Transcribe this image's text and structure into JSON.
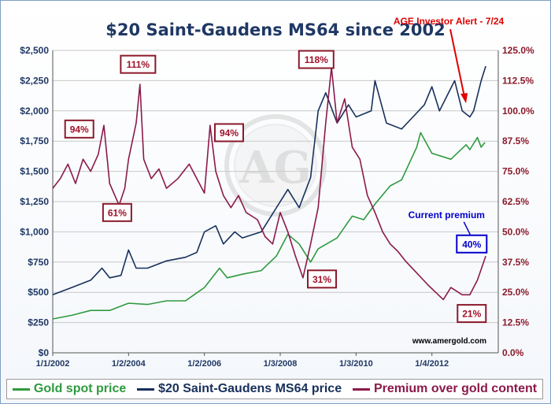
{
  "chart_data": {
    "type": "line",
    "title": "$20 Saint-Gaudens MS64 since 2002",
    "x_ticks": [
      "1/1/2002",
      "1/2/2004",
      "1/2/2006",
      "1/3/2008",
      "1/3/2010",
      "1/4/2012"
    ],
    "y_left_ticks": [
      "$0",
      "$250",
      "$500",
      "$750",
      "$1,000",
      "$1,250",
      "$1,500",
      "$1,750",
      "$2,000",
      "$2,250",
      "$2,500"
    ],
    "y_right_ticks": [
      "0.0%",
      "12.5%",
      "25.0%",
      "37.5%",
      "50.0%",
      "62.5%",
      "75.0%",
      "87.5%",
      "100.0%",
      "112.5%",
      "125.0%"
    ],
    "ylim_left": [
      0,
      2500
    ],
    "ylim_right": [
      0,
      125
    ],
    "xlim": [
      2002.0,
      2013.75
    ],
    "grid": "horizontal",
    "legend_position": "bottom",
    "colors": {
      "gold": "#2e9a3f",
      "coin": "#17305c",
      "premium": "#8b1a4a",
      "title": "#1f3864",
      "callout": "#8b1a2b",
      "current": "#0000cc",
      "alert": "#e00000"
    },
    "series": [
      {
        "name": "Gold spot price",
        "axis": "left",
        "points": [
          [
            2002.0,
            280
          ],
          [
            2002.5,
            310
          ],
          [
            2003.0,
            350
          ],
          [
            2003.5,
            350
          ],
          [
            2004.0,
            410
          ],
          [
            2004.5,
            400
          ],
          [
            2005.0,
            430
          ],
          [
            2005.5,
            430
          ],
          [
            2006.0,
            540
          ],
          [
            2006.4,
            700
          ],
          [
            2006.6,
            620
          ],
          [
            2007.0,
            650
          ],
          [
            2007.5,
            680
          ],
          [
            2007.9,
            800
          ],
          [
            2008.2,
            980
          ],
          [
            2008.5,
            900
          ],
          [
            2008.8,
            750
          ],
          [
            2009.0,
            860
          ],
          [
            2009.5,
            950
          ],
          [
            2009.9,
            1130
          ],
          [
            2010.2,
            1100
          ],
          [
            2010.5,
            1230
          ],
          [
            2010.9,
            1380
          ],
          [
            2011.2,
            1430
          ],
          [
            2011.6,
            1700
          ],
          [
            2011.7,
            1820
          ],
          [
            2012.0,
            1650
          ],
          [
            2012.5,
            1600
          ],
          [
            2012.9,
            1720
          ],
          [
            2013.0,
            1680
          ],
          [
            2013.2,
            1780
          ],
          [
            2013.3,
            1700
          ],
          [
            2013.4,
            1740
          ]
        ]
      },
      {
        "name": "$20 Saint-Gaudens MS64 price",
        "axis": "left",
        "points": [
          [
            2002.0,
            480
          ],
          [
            2002.5,
            540
          ],
          [
            2003.0,
            600
          ],
          [
            2003.3,
            700
          ],
          [
            2003.5,
            620
          ],
          [
            2003.8,
            640
          ],
          [
            2004.0,
            850
          ],
          [
            2004.2,
            700
          ],
          [
            2004.5,
            700
          ],
          [
            2005.0,
            760
          ],
          [
            2005.5,
            790
          ],
          [
            2005.8,
            830
          ],
          [
            2006.0,
            1000
          ],
          [
            2006.3,
            1050
          ],
          [
            2006.5,
            900
          ],
          [
            2006.8,
            1000
          ],
          [
            2007.0,
            950
          ],
          [
            2007.5,
            1000
          ],
          [
            2008.0,
            1250
          ],
          [
            2008.2,
            1350
          ],
          [
            2008.5,
            1200
          ],
          [
            2008.8,
            1450
          ],
          [
            2009.0,
            2000
          ],
          [
            2009.2,
            2150
          ],
          [
            2009.5,
            1900
          ],
          [
            2009.8,
            2050
          ],
          [
            2010.0,
            1950
          ],
          [
            2010.4,
            2000
          ],
          [
            2010.5,
            2250
          ],
          [
            2010.8,
            1900
          ],
          [
            2011.2,
            1850
          ],
          [
            2011.5,
            1950
          ],
          [
            2011.8,
            2050
          ],
          [
            2012.0,
            2200
          ],
          [
            2012.2,
            2000
          ],
          [
            2012.6,
            2250
          ],
          [
            2012.8,
            2000
          ],
          [
            2013.0,
            1950
          ],
          [
            2013.1,
            2000
          ],
          [
            2013.3,
            2250
          ],
          [
            2013.42,
            2370
          ]
        ]
      },
      {
        "name": "Premium over gold content",
        "axis": "right",
        "points": [
          [
            2002.0,
            68
          ],
          [
            2002.2,
            72
          ],
          [
            2002.4,
            78
          ],
          [
            2002.6,
            70
          ],
          [
            2002.8,
            80
          ],
          [
            2003.0,
            75
          ],
          [
            2003.2,
            82
          ],
          [
            2003.35,
            94
          ],
          [
            2003.5,
            70
          ],
          [
            2003.75,
            61
          ],
          [
            2003.9,
            68
          ],
          [
            2004.0,
            80
          ],
          [
            2004.2,
            95
          ],
          [
            2004.3,
            111
          ],
          [
            2004.4,
            80
          ],
          [
            2004.6,
            72
          ],
          [
            2004.8,
            76
          ],
          [
            2005.0,
            68
          ],
          [
            2005.3,
            72
          ],
          [
            2005.6,
            78
          ],
          [
            2005.8,
            72
          ],
          [
            2006.0,
            66
          ],
          [
            2006.15,
            94
          ],
          [
            2006.3,
            75
          ],
          [
            2006.5,
            65
          ],
          [
            2006.7,
            60
          ],
          [
            2006.9,
            65
          ],
          [
            2007.1,
            58
          ],
          [
            2007.4,
            55
          ],
          [
            2007.6,
            48
          ],
          [
            2007.8,
            45
          ],
          [
            2008.0,
            58
          ],
          [
            2008.2,
            50
          ],
          [
            2008.4,
            40
          ],
          [
            2008.6,
            31
          ],
          [
            2008.8,
            45
          ],
          [
            2009.0,
            60
          ],
          [
            2009.2,
            95
          ],
          [
            2009.35,
            118
          ],
          [
            2009.5,
            95
          ],
          [
            2009.7,
            105
          ],
          [
            2009.9,
            85
          ],
          [
            2010.1,
            80
          ],
          [
            2010.3,
            65
          ],
          [
            2010.5,
            58
          ],
          [
            2010.7,
            50
          ],
          [
            2010.9,
            45
          ],
          [
            2011.1,
            42
          ],
          [
            2011.3,
            38
          ],
          [
            2011.6,
            33
          ],
          [
            2011.9,
            28
          ],
          [
            2012.1,
            25
          ],
          [
            2012.3,
            22
          ],
          [
            2012.5,
            27
          ],
          [
            2012.8,
            24
          ],
          [
            2013.0,
            24
          ],
          [
            2013.2,
            30
          ],
          [
            2013.42,
            40
          ]
        ]
      }
    ],
    "annotations": {
      "callouts": [
        {
          "label": "94%",
          "x": 2002.7,
          "y": 1850
        },
        {
          "label": "111%",
          "x": 2004.25,
          "y": 2385
        },
        {
          "label": "61%",
          "x": 2003.7,
          "y": 1160
        },
        {
          "label": "94%",
          "x": 2006.65,
          "y": 1820
        },
        {
          "label": "118%",
          "x": 2008.95,
          "y": 2425
        },
        {
          "label": "31%",
          "x": 2009.1,
          "y": 610
        },
        {
          "label": "21%",
          "x": 2013.05,
          "y": 325
        }
      ],
      "current_premium_label": "Current premium",
      "current_premium_value": "40%",
      "current_premium_x": 2013.05,
      "current_premium_y": 900,
      "alert_label": "AGE Investor Alert - 7/24",
      "alert_x": 2012.9,
      "alert_y": 2050,
      "watermark_letters": "AG",
      "source": "www.amergold.com"
    }
  }
}
